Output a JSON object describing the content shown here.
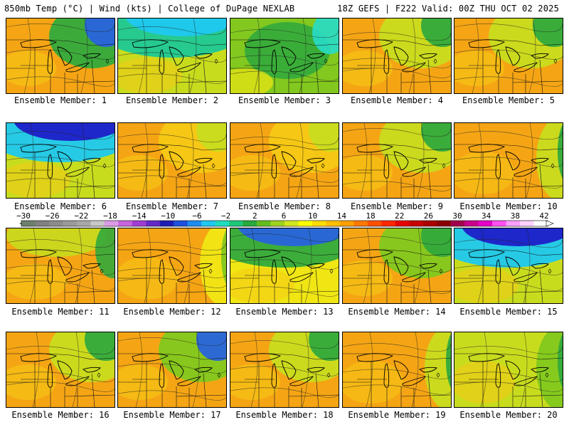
{
  "header": {
    "left": "850mb Temp (°C) | Wind (kts) | College of DuPage NEXLAB",
    "right": "18Z GEFS | F222 Valid: 00Z THU OCT 02 2025"
  },
  "colorbar": {
    "labels": [
      "-30",
      "-26",
      "-22",
      "-18",
      "-14",
      "-10",
      "-6",
      "-2",
      "2",
      "6",
      "10",
      "14",
      "18",
      "22",
      "26",
      "30",
      "34",
      "38",
      "42"
    ],
    "colors": [
      "#6e7f6e",
      "#808080",
      "#8c8c8c",
      "#9a9a9a",
      "#a8a8a8",
      "#c8c8c8",
      "#dc9be6",
      "#c864dc",
      "#a03cd2",
      "#6428c8",
      "#1e1eb4",
      "#1e50dc",
      "#1e8cf0",
      "#1ec8f0",
      "#1edcbe",
      "#1ec878",
      "#28aa3c",
      "#64be1e",
      "#a0d21e",
      "#d2e61e",
      "#ffff00",
      "#ffdc00",
      "#ffbe00",
      "#ffa000",
      "#ff7800",
      "#ff5000",
      "#ff2800",
      "#e60000",
      "#c80000",
      "#aa0000",
      "#8c0000",
      "#a0004b",
      "#c8008c",
      "#e600c8",
      "#ff50f0",
      "#ffa0ff",
      "#ffd2ff",
      "#ffffff"
    ]
  },
  "palette": {
    "deepblue": "#1e1ec8",
    "blue": "#2864dc",
    "lightblue": "#1ec8f0",
    "cyan": "#28dcc8",
    "teal": "#1ec896",
    "green": "#32aa3c",
    "lightgreen": "#82c81e",
    "yellowgreen": "#c8dc1e",
    "yellow": "#f0e614",
    "gold": "#f5c814",
    "orange": "#f5a514",
    "darkorange": "#ee7d1e",
    "red": "#e6501e"
  },
  "members": [
    {
      "label": "Ensemble Member: 1",
      "base": "orange",
      "accent": "green",
      "accent2": "blue",
      "pattern": "ne"
    },
    {
      "label": "Ensemble Member: 2",
      "base": "yellowgreen",
      "accent": "teal",
      "accent2": "lightblue",
      "pattern": "north"
    },
    {
      "label": "Ensemble Member: 3",
      "base": "lightgreen",
      "accent": "green",
      "accent2": "cyan",
      "pattern": "center"
    },
    {
      "label": "Ensemble Member: 4",
      "base": "orange",
      "accent": "yellowgreen",
      "accent2": "green",
      "pattern": "ne"
    },
    {
      "label": "Ensemble Member: 5",
      "base": "orange",
      "accent": "yellowgreen",
      "accent2": "green",
      "pattern": "ne"
    },
    {
      "label": "Ensemble Member: 6",
      "base": "yellowgreen",
      "accent": "lightblue",
      "accent2": "deepblue",
      "pattern": "north"
    },
    {
      "label": "Ensemble Member: 7",
      "base": "orange",
      "accent": "gold",
      "accent2": "yellowgreen",
      "pattern": "ne"
    },
    {
      "label": "Ensemble Member: 8",
      "base": "orange",
      "accent": "gold",
      "accent2": "yellowgreen",
      "pattern": "ne"
    },
    {
      "label": "Ensemble Member: 9",
      "base": "orange",
      "accent": "yellowgreen",
      "accent2": "green",
      "pattern": "ne"
    },
    {
      "label": "Ensemble Member: 10",
      "base": "orange",
      "accent": "yellowgreen",
      "accent2": "green",
      "pattern": "east"
    },
    {
      "label": "Ensemble Member: 11",
      "base": "orange",
      "accent": "yellowgreen",
      "accent2": "green",
      "pattern": "nw"
    },
    {
      "label": "Ensemble Member: 12",
      "base": "orange",
      "accent": "yellow",
      "accent2": "lightgreen",
      "pattern": "east"
    },
    {
      "label": "Ensemble Member: 13",
      "base": "yellow",
      "accent": "green",
      "accent2": "blue",
      "pattern": "north"
    },
    {
      "label": "Ensemble Member: 14",
      "base": "orange",
      "accent": "lightgreen",
      "accent2": "green",
      "pattern": "ne"
    },
    {
      "label": "Ensemble Member: 15",
      "base": "yellowgreen",
      "accent": "lightblue",
      "accent2": "deepblue",
      "pattern": "north"
    },
    {
      "label": "Ensemble Member: 16",
      "base": "orange",
      "accent": "yellowgreen",
      "accent2": "green",
      "pattern": "ne"
    },
    {
      "label": "Ensemble Member: 17",
      "base": "orange",
      "accent": "lightgreen",
      "accent2": "blue",
      "pattern": "ne"
    },
    {
      "label": "Ensemble Member: 18",
      "base": "orange",
      "accent": "yellowgreen",
      "accent2": "green",
      "pattern": "ne"
    },
    {
      "label": "Ensemble Member: 19",
      "base": "orange",
      "accent": "yellowgreen",
      "accent2": "green",
      "pattern": "east"
    },
    {
      "label": "Ensemble Member: 20",
      "base": "yellowgreen",
      "accent": "lightgreen",
      "accent2": "green",
      "pattern": "east"
    }
  ]
}
